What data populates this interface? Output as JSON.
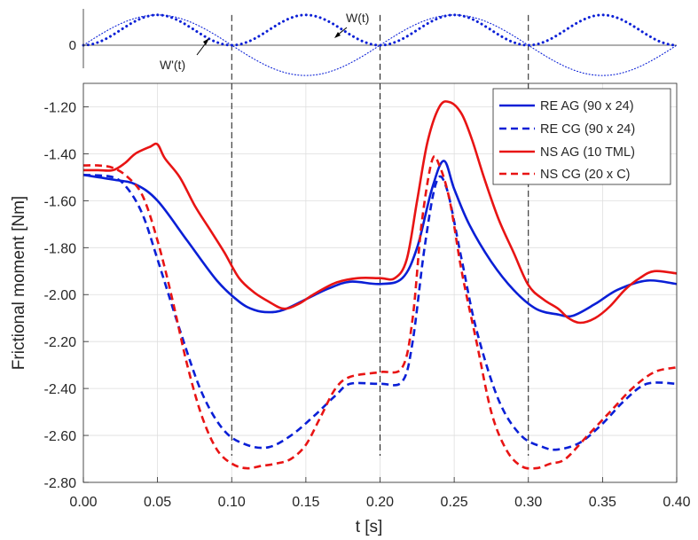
{
  "colors": {
    "blue": "#0a1fd6",
    "red": "#e81414",
    "axis": "#262626",
    "grid": "#dedede",
    "ref_line": "#000000",
    "background": "#ffffff"
  },
  "chart_data": [
    {
      "type": "line",
      "xlim": [
        0,
        0.4
      ],
      "ylim": [
        -0.12,
        0.12
      ],
      "y_ticks": [
        "0"
      ],
      "grid": false,
      "series": [
        {
          "name": "W(t)",
          "style": "dotted-bold",
          "color": "blue",
          "formula": "0.1*sin(10*pi*t)^2",
          "x": [
            0,
            0.025,
            0.05,
            0.075,
            0.1,
            0.125,
            0.15,
            0.175,
            0.2,
            0.225,
            0.25,
            0.275,
            0.3,
            0.325,
            0.35,
            0.375,
            0.4
          ],
          "y": [
            0,
            0.05,
            0.1,
            0.05,
            0,
            0.05,
            0.1,
            0.05,
            0,
            0.05,
            0.1,
            0.05,
            0,
            0.05,
            0.1,
            0.05,
            0
          ]
        },
        {
          "name": "W'(t)",
          "style": "dotted-thin",
          "color": "blue",
          "formula": "0.1*sin(10*pi*t)",
          "x": [
            0,
            0.025,
            0.05,
            0.075,
            0.1,
            0.125,
            0.15,
            0.175,
            0.2,
            0.225,
            0.25,
            0.275,
            0.3,
            0.325,
            0.35,
            0.375,
            0.4
          ],
          "y": [
            0,
            0.071,
            0.1,
            0.071,
            0,
            -0.071,
            -0.1,
            -0.071,
            0,
            0.071,
            0.1,
            0.071,
            0,
            -0.071,
            -0.1,
            -0.071,
            0
          ]
        }
      ],
      "annotations": [
        {
          "text": "W(t)",
          "x": 0.196,
          "y": 0.062,
          "arrow_to": [
            0.17,
            0.018
          ]
        },
        {
          "text": "W'(t)",
          "x": 0.053,
          "y": -0.045,
          "arrow_to": [
            0.083,
            0.012
          ]
        }
      ]
    },
    {
      "type": "line",
      "xlabel": "t [s]",
      "ylabel": "Frictional moment [Nm]",
      "xlim": [
        0,
        0.4
      ],
      "ylim": [
        -2.8,
        -1.1
      ],
      "x_ticks": [
        "0.00",
        "0.05",
        "0.10",
        "0.15",
        "0.20",
        "0.25",
        "0.30",
        "0.35",
        "0.40"
      ],
      "y_ticks": [
        "-1.20",
        "-1.40",
        "-1.60",
        "-1.80",
        "-2.00",
        "-2.20",
        "-2.40",
        "-2.60",
        "-2.80"
      ],
      "grid": true,
      "legend_position": "top-right",
      "vertical_reference_lines_x": [
        0.1,
        0.2,
        0.3
      ],
      "series": [
        {
          "name": "RE AG (90 x 24)",
          "color": "blue",
          "dash": "solid",
          "x": [
            0,
            0.02,
            0.035,
            0.05,
            0.07,
            0.09,
            0.105,
            0.115,
            0.125,
            0.135,
            0.15,
            0.165,
            0.18,
            0.2,
            0.215,
            0.225,
            0.235,
            0.243,
            0.25,
            0.26,
            0.275,
            0.29,
            0.305,
            0.32,
            0.33,
            0.345,
            0.36,
            0.38,
            0.4
          ],
          "y": [
            -1.49,
            -1.51,
            -1.53,
            -1.6,
            -1.77,
            -1.94,
            -2.03,
            -2.065,
            -2.075,
            -2.065,
            -2.02,
            -1.975,
            -1.945,
            -1.955,
            -1.93,
            -1.8,
            -1.55,
            -1.43,
            -1.55,
            -1.7,
            -1.86,
            -1.98,
            -2.06,
            -2.085,
            -2.09,
            -2.04,
            -1.98,
            -1.94,
            -1.955
          ]
        },
        {
          "name": "RE CG (90 x 24)",
          "color": "blue",
          "dash": "dashed",
          "x": [
            0,
            0.02,
            0.03,
            0.04,
            0.05,
            0.065,
            0.08,
            0.095,
            0.11,
            0.125,
            0.14,
            0.155,
            0.17,
            0.18,
            0.2,
            0.215,
            0.222,
            0.23,
            0.238,
            0.245,
            0.255,
            0.265,
            0.28,
            0.295,
            0.31,
            0.32,
            0.335,
            0.35,
            0.365,
            0.38,
            0.4
          ],
          "y": [
            -1.49,
            -1.5,
            -1.55,
            -1.66,
            -1.85,
            -2.15,
            -2.42,
            -2.58,
            -2.64,
            -2.65,
            -2.6,
            -2.52,
            -2.43,
            -2.38,
            -2.38,
            -2.37,
            -2.2,
            -1.8,
            -1.52,
            -1.55,
            -1.85,
            -2.15,
            -2.45,
            -2.6,
            -2.65,
            -2.66,
            -2.63,
            -2.55,
            -2.45,
            -2.38,
            -2.38
          ]
        },
        {
          "name": "NS AG (10 TML)",
          "color": "red",
          "dash": "solid",
          "x": [
            0,
            0.01,
            0.02,
            0.028,
            0.035,
            0.045,
            0.05,
            0.055,
            0.065,
            0.075,
            0.085,
            0.095,
            0.105,
            0.115,
            0.125,
            0.135,
            0.145,
            0.155,
            0.17,
            0.185,
            0.2,
            0.21,
            0.218,
            0.225,
            0.232,
            0.24,
            0.247,
            0.255,
            0.262,
            0.27,
            0.28,
            0.29,
            0.3,
            0.31,
            0.32,
            0.327,
            0.335,
            0.345,
            0.355,
            0.365,
            0.375,
            0.385,
            0.4
          ],
          "y": [
            -1.47,
            -1.47,
            -1.47,
            -1.44,
            -1.4,
            -1.37,
            -1.36,
            -1.42,
            -1.5,
            -1.62,
            -1.72,
            -1.82,
            -1.93,
            -1.99,
            -2.03,
            -2.06,
            -2.04,
            -2.0,
            -1.95,
            -1.93,
            -1.93,
            -1.93,
            -1.85,
            -1.6,
            -1.35,
            -1.2,
            -1.18,
            -1.23,
            -1.34,
            -1.5,
            -1.68,
            -1.82,
            -1.96,
            -2.02,
            -2.06,
            -2.1,
            -2.12,
            -2.1,
            -2.05,
            -1.98,
            -1.93,
            -1.9,
            -1.91
          ]
        },
        {
          "name": "NS CG (20 x C)",
          "color": "red",
          "dash": "dashed",
          "x": [
            0,
            0.01,
            0.02,
            0.03,
            0.04,
            0.05,
            0.06,
            0.07,
            0.08,
            0.09,
            0.1,
            0.11,
            0.12,
            0.13,
            0.14,
            0.15,
            0.16,
            0.17,
            0.18,
            0.2,
            0.215,
            0.222,
            0.228,
            0.235,
            0.24,
            0.247,
            0.255,
            0.265,
            0.275,
            0.285,
            0.295,
            0.305,
            0.315,
            0.325,
            0.34,
            0.355,
            0.37,
            0.385,
            0.4
          ],
          "y": [
            -1.45,
            -1.45,
            -1.46,
            -1.5,
            -1.58,
            -1.77,
            -2.02,
            -2.3,
            -2.52,
            -2.66,
            -2.72,
            -2.74,
            -2.73,
            -2.72,
            -2.7,
            -2.64,
            -2.52,
            -2.4,
            -2.35,
            -2.33,
            -2.31,
            -2.1,
            -1.7,
            -1.43,
            -1.45,
            -1.6,
            -1.9,
            -2.2,
            -2.5,
            -2.66,
            -2.73,
            -2.74,
            -2.72,
            -2.7,
            -2.6,
            -2.5,
            -2.4,
            -2.33,
            -2.31
          ]
        }
      ]
    }
  ]
}
